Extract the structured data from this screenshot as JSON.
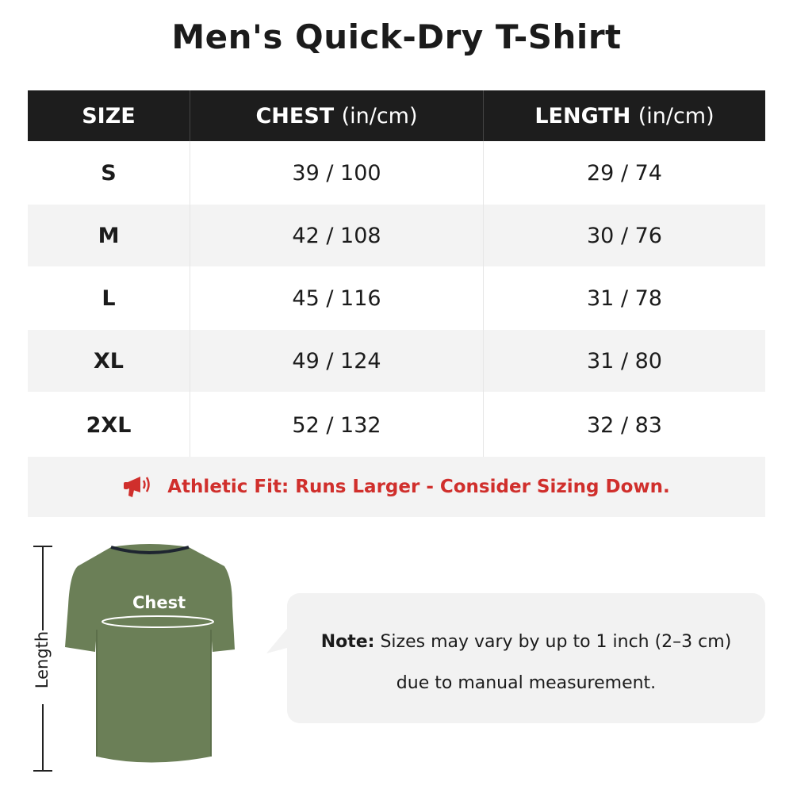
{
  "title": "Men's Quick-Dry T-Shirt",
  "table": {
    "headers": [
      {
        "label": "SIZE",
        "unit": ""
      },
      {
        "label": "CHEST",
        "unit": "(in/cm)"
      },
      {
        "label": "LENGTH",
        "unit": "(in/cm)"
      }
    ],
    "rows": [
      {
        "size": "S",
        "chest": "39 / 100",
        "length": "29 / 74"
      },
      {
        "size": "M",
        "chest": "42 / 108",
        "length": "30 / 76"
      },
      {
        "size": "L",
        "chest": "45 / 116",
        "length": "31 / 78"
      },
      {
        "size": "XL",
        "chest": "49 / 124",
        "length": "31 / 80"
      },
      {
        "size": "2XL",
        "chest": "52 / 132",
        "length": "32 / 83"
      }
    ]
  },
  "notice": {
    "icon": "megaphone-icon",
    "text": "Athletic Fit: Runs Larger - Consider Sizing Down.",
    "color": "#d02f2c"
  },
  "diagram": {
    "length_label": "Length",
    "chest_label": "Chest",
    "shirt_color": "#6b7f57"
  },
  "note": {
    "label": "Note:",
    "line1": "Sizes may vary by up to 1 inch (2–3 cm)",
    "line2": "due to manual measurement."
  }
}
